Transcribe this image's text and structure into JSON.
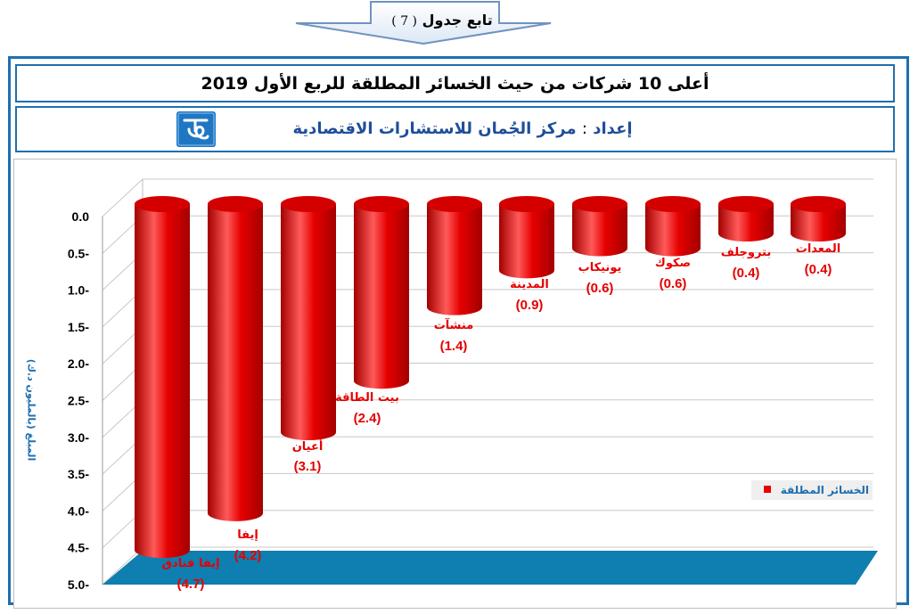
{
  "header": {
    "continuation_label": "تابع جدول",
    "table_number": "( 7 )"
  },
  "title": {
    "text": "أعلى 10 شركات من حيث الخسائر المطلقة للربع الأول 2019"
  },
  "prepared_by": {
    "label": "إعداد",
    "separator": ":",
    "name": "مركز الجُمان للاستشارات الاقتصادية"
  },
  "colors": {
    "bar": "#e60000",
    "bar_dark": "#a30000",
    "bar_light": "#ff5a5a",
    "floor": "#0e7fb0",
    "frame": "#1f6fb0",
    "axis_label": "#1f6fb0",
    "data_label": "#e60000"
  },
  "legend": {
    "label": "الخسائر المطلقة",
    "position": "bottom-right"
  },
  "chart_data": {
    "type": "bar",
    "categories": [
      "إيفا فنادق",
      "إيفا",
      "أعيان",
      "بيت الطاقة",
      "منشآت",
      "المدينة",
      "يونيكاب",
      "صكوك",
      "بتروجلف",
      "المعدات"
    ],
    "value_labels": [
      "(4.7)",
      "(4.2)",
      "(3.1)",
      "(2.4)",
      "(1.4)",
      "(0.9)",
      "(0.6)",
      "(0.6)",
      "(0.4)",
      "(0.4)"
    ],
    "series": [
      {
        "name": "الخسائر المطلقة",
        "values": [
          4.7,
          4.2,
          3.1,
          2.4,
          1.4,
          0.9,
          0.6,
          0.6,
          0.4,
          0.4
        ]
      }
    ],
    "ylabel": "المبلغ (بالمليون د.ك)",
    "yticks": [
      "0.0",
      "0.5-",
      "1.0-",
      "1.5-",
      "2.0-",
      "2.5-",
      "3.0-",
      "3.5-",
      "4.0-",
      "4.5-",
      "5.0-"
    ],
    "ylim": [
      0,
      5
    ],
    "y_inverted": true,
    "grid": true
  }
}
